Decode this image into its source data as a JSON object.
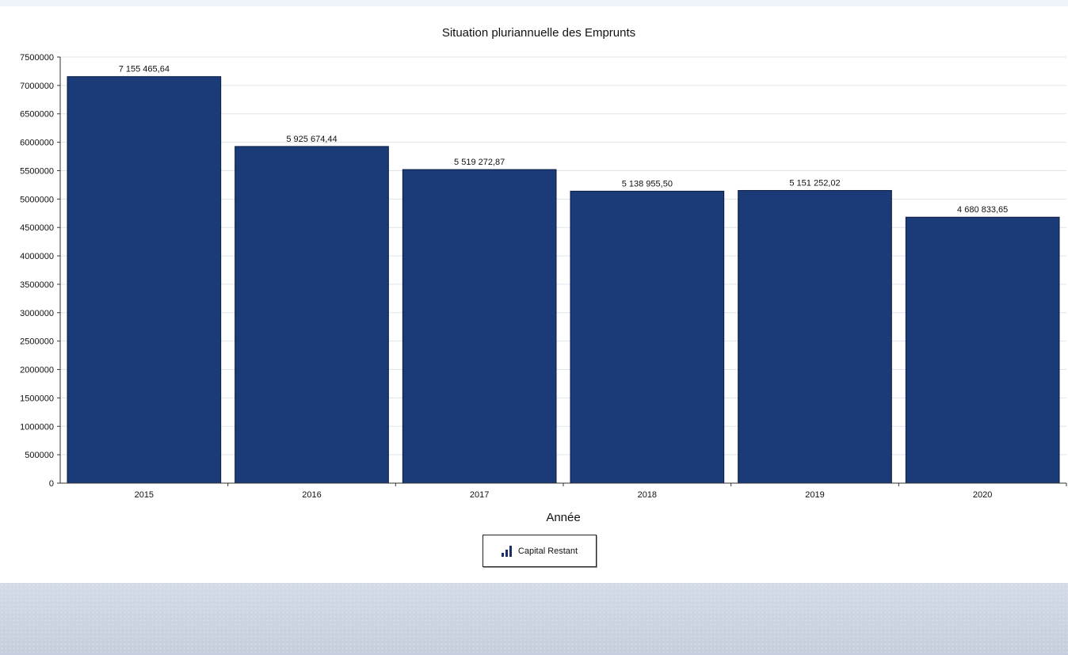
{
  "chart_data": {
    "type": "bar",
    "title": "Situation pluriannuelle des Emprunts",
    "xlabel": "Année",
    "ylabel": "",
    "categories": [
      "2015",
      "2016",
      "2017",
      "2018",
      "2019",
      "2020"
    ],
    "series": [
      {
        "name": "Capital Restant",
        "values": [
          7155465.64,
          5925674.44,
          5519272.87,
          5138955.5,
          5151252.02,
          4680833.65
        ],
        "labels": [
          "7 155 465,64",
          "5 925 674,44",
          "5 519 272,87",
          "5 138 955,50",
          "5 151 252,02",
          "4 680 833,65"
        ]
      }
    ],
    "ylim": [
      0,
      7500000
    ],
    "yticks": [
      0,
      500000,
      1000000,
      1500000,
      2000000,
      2500000,
      3000000,
      3500000,
      4000000,
      4500000,
      5000000,
      5500000,
      6000000,
      6500000,
      7000000,
      7500000
    ],
    "grid": true,
    "legend_position": "bottom-center"
  },
  "colors": {
    "bar": "#1a3a78",
    "bar_edge": "#0b1c42",
    "grid": "#dfe3ea",
    "axis": "#333333",
    "background": "#ffffff"
  },
  "legend": {
    "label": "Capital Restant",
    "icon": "bar-chart-icon"
  }
}
